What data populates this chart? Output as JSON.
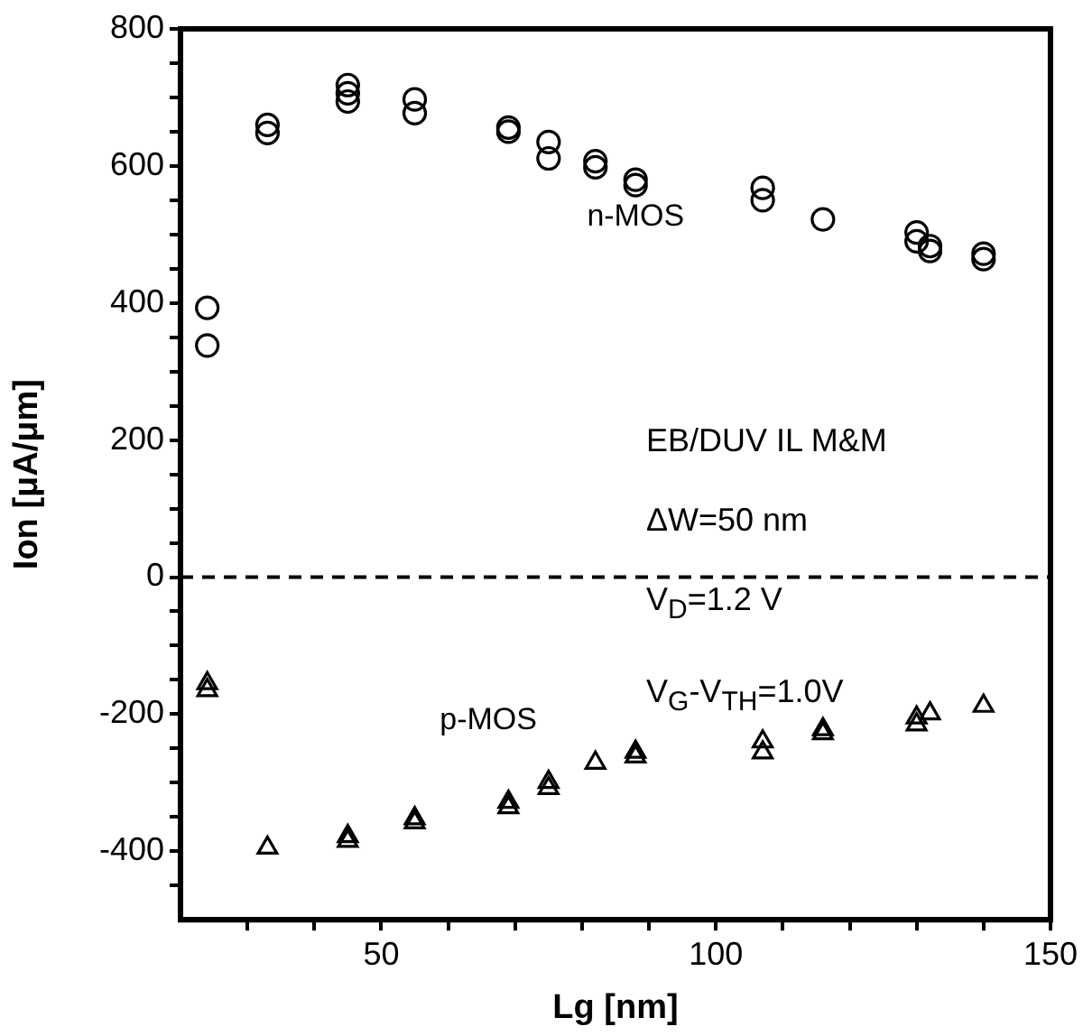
{
  "chart_data": {
    "type": "scatter",
    "xlabel": "Lg [nm]",
    "ylabel": "Ion [μA/μm]",
    "xlim": [
      20,
      150
    ],
    "xticks": [
      {
        "value": 30,
        "label": null
      },
      {
        "value": 40,
        "label": null
      },
      50,
      {
        "value": 60,
        "label": null
      },
      {
        "value": 70,
        "label": null
      },
      {
        "value": 80,
        "label": null
      },
      {
        "value": 90,
        "label": null
      },
      100,
      {
        "value": 110,
        "label": null
      },
      {
        "value": 120,
        "label": null
      },
      {
        "value": 130,
        "label": null
      },
      {
        "value": 140,
        "label": null
      },
      150
    ],
    "ylim": [
      -500,
      800
    ],
    "yticks": [
      {
        "value": -450,
        "label": null
      },
      -400,
      {
        "value": -350,
        "label": null
      },
      {
        "value": -300,
        "label": null
      },
      {
        "value": -250,
        "label": null
      },
      -200,
      {
        "value": -150,
        "label": null
      },
      {
        "value": -100,
        "label": null
      },
      {
        "value": -50,
        "label": null
      },
      0,
      {
        "value": 50,
        "label": null
      },
      {
        "value": 100,
        "label": null
      },
      {
        "value": 150,
        "label": null
      },
      200,
      {
        "value": 250,
        "label": null
      },
      {
        "value": 300,
        "label": null
      },
      {
        "value": 350,
        "label": null
      },
      400,
      {
        "value": 450,
        "label": null
      },
      {
        "value": 500,
        "label": null
      },
      {
        "value": 550,
        "label": null
      },
      600,
      {
        "value": 650,
        "label": null
      },
      {
        "value": 700,
        "label": null
      },
      {
        "value": 750,
        "label": null
      },
      800
    ],
    "grid": false,
    "legend": false,
    "series": [
      {
        "name": "n-MOS",
        "color": "#000000",
        "marker": "circle",
        "x": [
          24,
          24,
          33,
          33,
          45,
          45,
          45,
          55,
          55,
          69,
          69,
          75,
          75,
          82,
          82,
          88,
          88,
          107,
          107,
          116,
          130,
          130,
          132,
          132,
          140,
          140
        ],
        "values": [
          393,
          338,
          660,
          648,
          718,
          706,
          694,
          697,
          677,
          656,
          650,
          635,
          611,
          607,
          598,
          580,
          572,
          568,
          550,
          522,
          503,
          490,
          483,
          476,
          472,
          464
        ]
      },
      {
        "name": "p-MOS",
        "color": "#000000",
        "marker": "triangle",
        "x": [
          24,
          24,
          33,
          45,
          45,
          55,
          55,
          69,
          69,
          75,
          75,
          82,
          88,
          88,
          107,
          107,
          116,
          116,
          130,
          130,
          132,
          140
        ],
        "values": [
          -155,
          -165,
          -395,
          -378,
          -385,
          -352,
          -358,
          -328,
          -336,
          -299,
          -308,
          -271,
          -255,
          -262,
          -240,
          -256,
          -222,
          -228,
          -205,
          -215,
          -199,
          -188
        ]
      }
    ],
    "ref_lines": [
      {
        "axis": "y",
        "value": 0,
        "line_style": "dashed",
        "color": "#000000"
      }
    ],
    "annotations": [
      "EB/DUV  IL M&M",
      "ΔW=50 nm",
      "V$_{D}$=1.2 V",
      "V$_{G}$-V$_{TH}$=1.0V"
    ]
  }
}
